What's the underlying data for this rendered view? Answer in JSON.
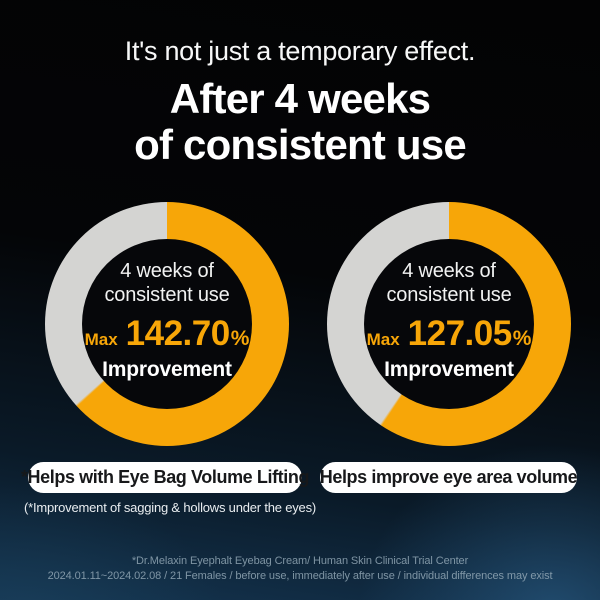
{
  "header": {
    "subtitle": "It's not just a temporary effect.",
    "title_line1": "After 4 weeks",
    "title_line2": "of consistent use"
  },
  "charts": [
    {
      "inner_label_line1": "4 weeks of",
      "inner_label_line2": "consistent use",
      "max_prefix": "Max",
      "value_text": "142.70",
      "percent_sign": "%",
      "result_label": "Improvement",
      "pill_label": "*Helps with Eye Bag Volume Lifting"
    },
    {
      "inner_label_line1": "4 weeks of",
      "inner_label_line2": "consistent use",
      "max_prefix": "Max",
      "value_text": "127.05",
      "percent_sign": "%",
      "result_label": "Improvement",
      "pill_label": "Helps improve eye area volume"
    }
  ],
  "footnote": "(*Improvement of sagging & hollows under the eyes)",
  "footer": {
    "line1": "*Dr.Melaxin Eyephalt Eyebag Cream/ Human Skin Clinical Trial Center",
    "line2": "2024.01.11~2024.02.08 / 21 Females / before use, immediately after use / individual differences may exist"
  },
  "colors": {
    "accent": "#F7A608",
    "track": "#D4D4D2",
    "pill_bg": "#FFFFFF",
    "pill_text": "#17181A"
  },
  "chart_data": [
    {
      "type": "donut",
      "label": "4 weeks of consistent use",
      "value": 142.7,
      "unit": "%",
      "value_qualifier": "Max",
      "result_label": "Improvement",
      "caption": "*Helps with Eye Bag Volume Lifting",
      "highlight_sweep_deg": 228,
      "highlight_color": "#F7A608",
      "track_color": "#D4D4D2",
      "start_angle_deg": 0,
      "direction": "clockwise"
    },
    {
      "type": "donut",
      "label": "4 weeks of consistent use",
      "value": 127.05,
      "unit": "%",
      "value_qualifier": "Max",
      "result_label": "Improvement",
      "caption": "Helps improve eye area volume",
      "highlight_sweep_deg": 214,
      "highlight_color": "#F7A608",
      "track_color": "#D4D4D2",
      "start_angle_deg": 0,
      "direction": "clockwise"
    }
  ]
}
